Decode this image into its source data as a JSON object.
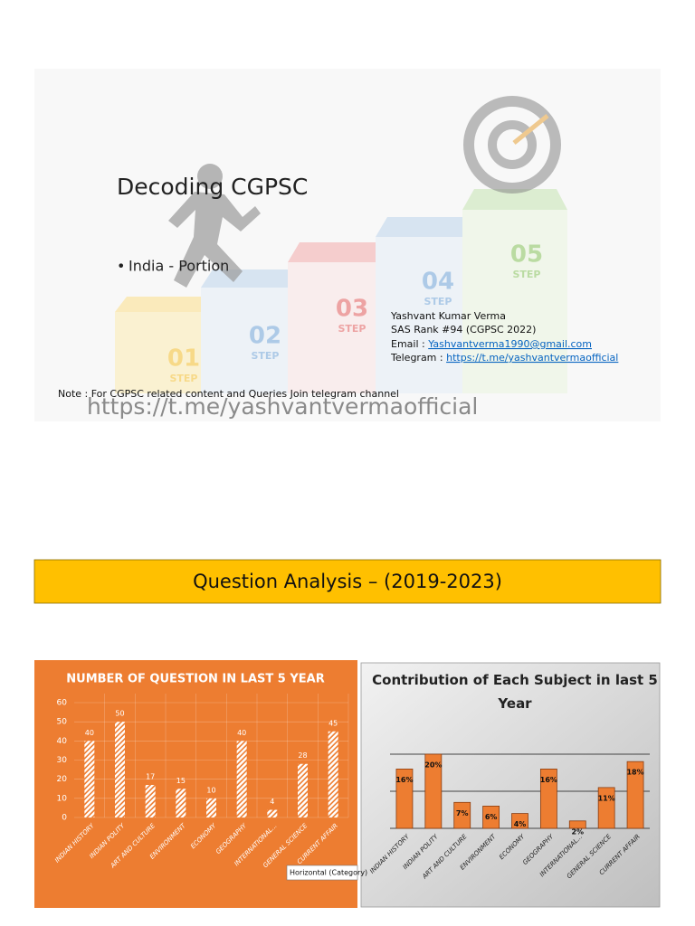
{
  "slide": {
    "title": "Decoding CGPSC",
    "bullet": "India - Portion",
    "steps": [
      {
        "number": "01",
        "label": "STEP"
      },
      {
        "number": "02",
        "label": "STEP"
      },
      {
        "number": "03",
        "label": "STEP"
      },
      {
        "number": "04",
        "label": "STEP"
      },
      {
        "number": "05",
        "label": "STEP"
      }
    ],
    "author": "Yashvant Kumar Verma",
    "rank": "SAS Rank #94 (CGPSC 2022)",
    "email_label": "Email : ",
    "email": "Yashvantverma1990@gmail.com",
    "telegram_label": "Telegram : ",
    "telegram": "https://t.me/yashvantvermaofficial",
    "note": "Note : For CGPSC related content and Queries  Join telegram channel",
    "channel": "https://t.me/yashvantvermaofficial"
  },
  "banner": {
    "title": "Question Analysis – (2019-2023)"
  },
  "tooltip": "Horizontal (Category)",
  "chart_data": [
    {
      "type": "bar",
      "title": "NUMBER OF QUESTION IN LAST 5 YEAR",
      "categories": [
        "INDIAN HISTORY",
        "INDIAN POLITY",
        "ART AND CULTURE",
        "ENVIRONMENT",
        "ECONOMY",
        "GEOGRAPHY",
        "INTERNATIONAL...",
        "GENERAL SCIENCE",
        "CURRENT AFFAIR"
      ],
      "values": [
        40,
        50,
        17,
        15,
        10,
        40,
        4,
        28,
        45
      ],
      "color": "#ffffff",
      "ylim": [
        0,
        60
      ],
      "yticks": [
        0,
        10,
        20,
        30,
        40,
        50,
        60
      ],
      "grid": true,
      "tick_labels": true
    },
    {
      "type": "bar",
      "title": "Contribution of Each Subject in last 5 Year",
      "categories": [
        "INDIAN HISTORY",
        "INDIAN POLITY",
        "ART AND CULTURE",
        "ENVIRONMENT",
        "ECONOMY",
        "GEOGRAPHY",
        "INTERNATIONAL...",
        "GENERAL SCIENCE",
        "CURRENT AFFAIR"
      ],
      "values": [
        16,
        20,
        7,
        6,
        4,
        16,
        2,
        11,
        18
      ],
      "value_labels": [
        "16%",
        "20%",
        "7%",
        "6%",
        "4%",
        "16%",
        "2%",
        "11%",
        "18%"
      ],
      "color": "#ed7d31",
      "ylim": [
        0,
        25
      ],
      "yticks": [
        0,
        10,
        20
      ],
      "grid": true,
      "tick_labels": false
    }
  ]
}
